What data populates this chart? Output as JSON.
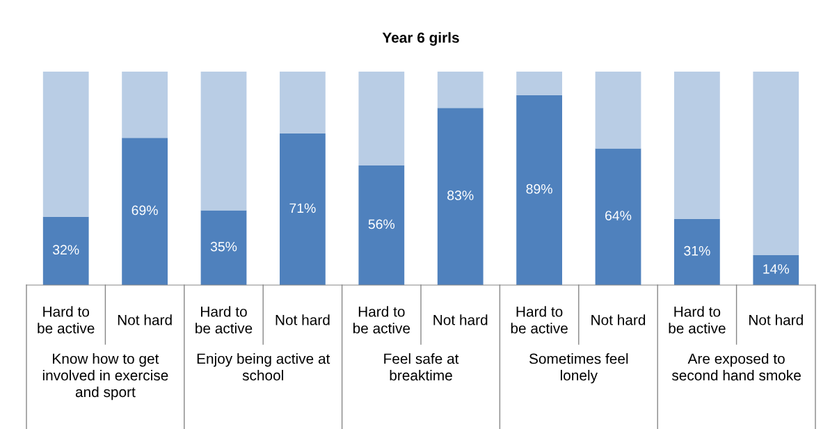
{
  "chart_data": {
    "type": "bar",
    "title": "Year 6 girls",
    "stacked": true,
    "ylim": [
      0,
      100
    ],
    "categories": [
      "Hard to\nbe active",
      "Not hard",
      "Hard to\nbe active",
      "Not hard",
      "Hard to\nbe active",
      "Not hard",
      "Hard to\nbe active",
      "Not hard",
      "Hard to\nbe active",
      "Not hard"
    ],
    "series": [
      {
        "color": "#4f81bd",
        "values": [
          32,
          69,
          35,
          71,
          56,
          83,
          89,
          64,
          31,
          14
        ],
        "value_labels": [
          "32%",
          "69%",
          "35%",
          "71%",
          "56%",
          "83%",
          "89%",
          "64%",
          "31%",
          "14%"
        ]
      },
      {
        "color": "#b9cde5",
        "values": [
          68,
          31,
          65,
          29,
          44,
          17,
          11,
          36,
          69,
          86
        ]
      }
    ],
    "annotations": [
      "Know how to get\ninvolved in exercise\nand sport",
      "Enjoy being active at\nschool",
      "Feel safe at\nbreaktime",
      "Sometimes feel\nlonely",
      "Are exposed to\nsecond hand smoke"
    ],
    "legend": false
  }
}
